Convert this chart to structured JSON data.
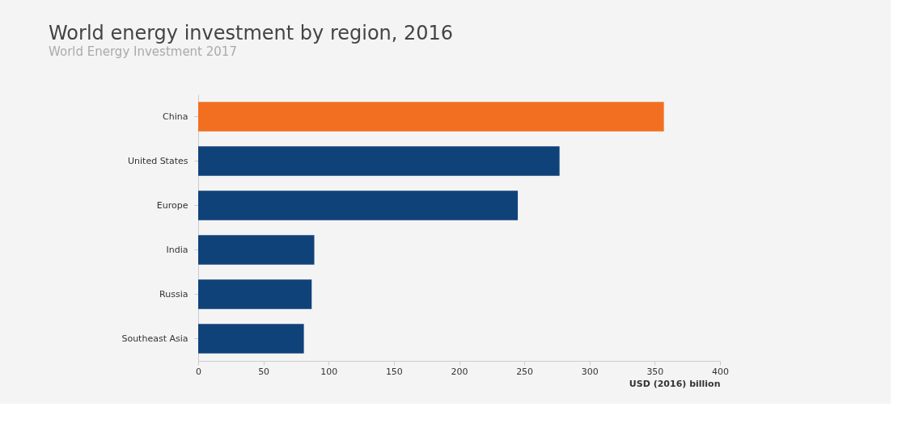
{
  "chart_data": {
    "type": "bar",
    "orientation": "horizontal",
    "title": "World energy investment by region, 2016",
    "subtitle": "World Energy Investment 2017",
    "xlabel": "USD (2016) billion",
    "categories": [
      "China",
      "United States",
      "Europe",
      "India",
      "Russia",
      "Southeast Asia"
    ],
    "values": [
      357,
      277,
      245,
      89,
      87,
      81
    ],
    "colors": [
      "#f26f21",
      "#10427a",
      "#10427a",
      "#10427a",
      "#10427a",
      "#10427a"
    ],
    "xlim": [
      0,
      400
    ],
    "xticks": [
      0,
      50,
      100,
      150,
      200,
      250,
      300,
      350,
      400
    ],
    "grid": false,
    "legend": false
  }
}
